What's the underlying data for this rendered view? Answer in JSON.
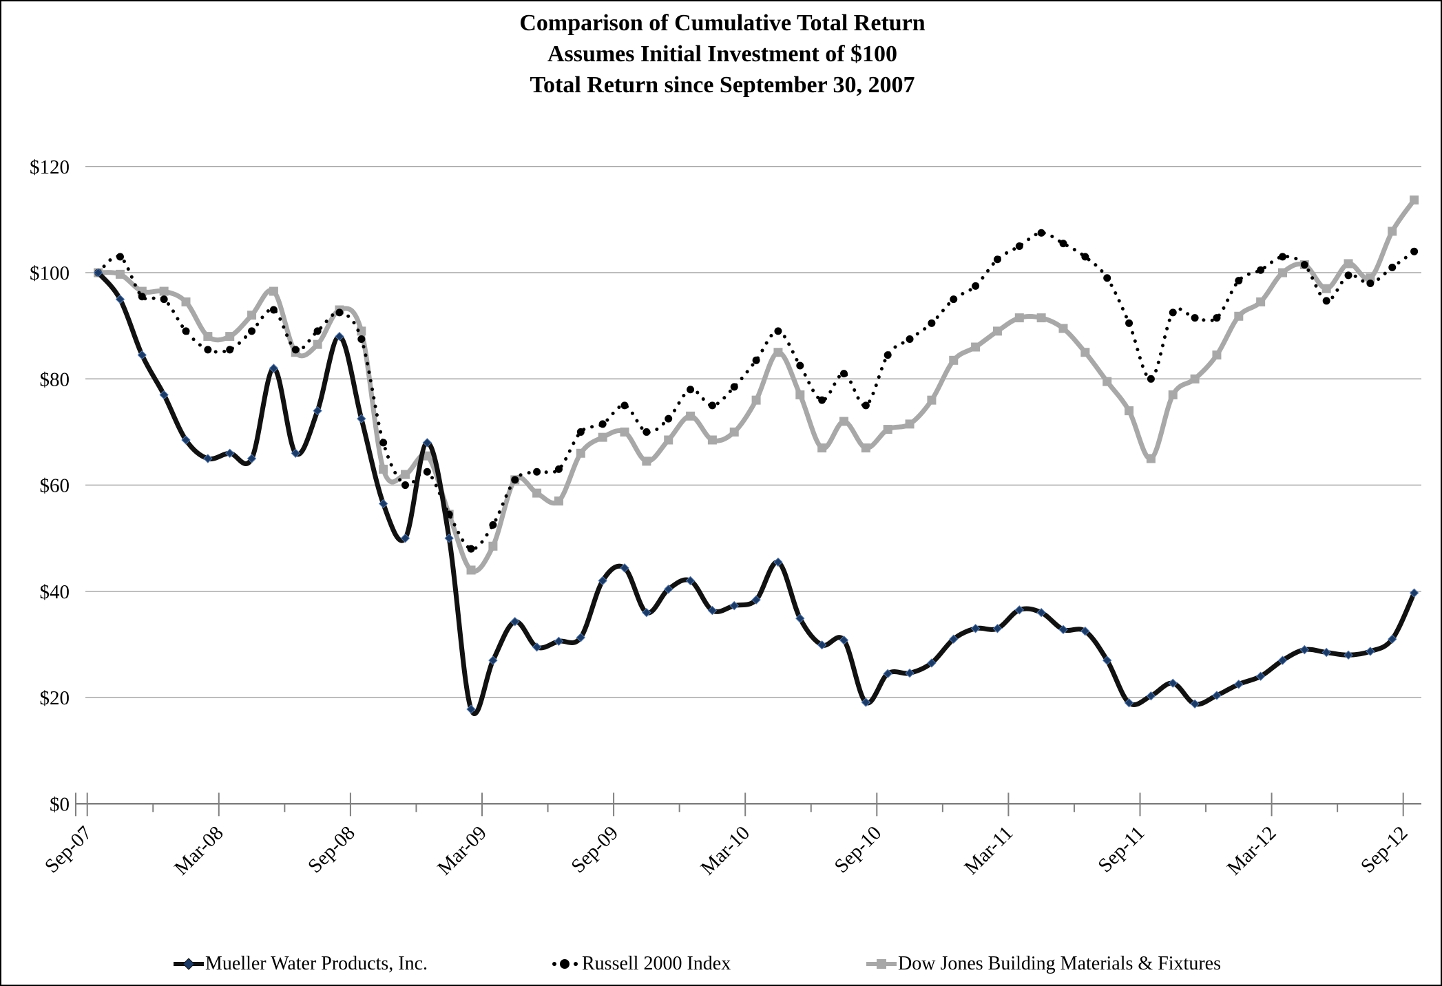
{
  "chart_data": {
    "type": "line",
    "title_lines": [
      "Comparison of Cumulative Total Return",
      "Assumes Initial Investment of $100",
      "Total Return since September 30, 2007"
    ],
    "ylim": [
      0,
      120
    ],
    "y_tick_labels": [
      "$0",
      "$20",
      "$40",
      "$60",
      "$80",
      "$100",
      "$120"
    ],
    "x_tick_labels": [
      "Sep-07",
      "Mar-08",
      "Sep-08",
      "Mar-09",
      "Sep-09",
      "Mar-10",
      "Sep-10",
      "Mar-11",
      "Sep-11",
      "Mar-12",
      "Sep-12"
    ],
    "months_per_point": 1,
    "points_per_tick": 6,
    "grid": "horizontal",
    "legend_position": "bottom",
    "colors": {
      "grid": "#a6a6a6",
      "axis": "#808080",
      "mueller_line": "#111111",
      "mueller_marker": "#1b3a66",
      "russell": "#000000",
      "dowjones": "#a8a8a8"
    },
    "series": [
      {
        "name": "Mueller Water Products, Inc.",
        "style": "solid",
        "marker": "diamond",
        "values": [
          100,
          95,
          84.5,
          77,
          68.5,
          65,
          66,
          65,
          82,
          66,
          74,
          88,
          72.5,
          56.5,
          50,
          68,
          50,
          17.8,
          27,
          34.3,
          29.5,
          30.6,
          31.3,
          42,
          44.4,
          36,
          40.4,
          42,
          36.4,
          37.3,
          38.4,
          45.5,
          34.9,
          29.9,
          30.8,
          19.1,
          24.5,
          24.6,
          26.5,
          31,
          33,
          33,
          36.5,
          36,
          32.8,
          32.5,
          27,
          19,
          20.3,
          22.7,
          18.8,
          20.4,
          22.5,
          24,
          27,
          29,
          28.5,
          28,
          28.7,
          31,
          39.7
        ]
      },
      {
        "name": "Russell 2000 Index",
        "style": "dotted",
        "marker": "circle",
        "values": [
          100,
          103,
          95.5,
          95,
          89,
          85.5,
          85.5,
          89,
          93,
          85.5,
          89,
          92.5,
          87.5,
          68,
          60,
          62.5,
          54.5,
          48,
          52.5,
          61,
          62.5,
          63,
          70,
          71.5,
          75,
          70,
          72.5,
          78,
          75,
          78.5,
          83.5,
          89,
          82.5,
          76,
          81,
          75,
          84.5,
          87.5,
          90.5,
          95,
          97.5,
          102.5,
          105,
          107.5,
          105.5,
          103,
          99,
          90.5,
          80,
          92.5,
          91.5,
          91.5,
          98.5,
          100.5,
          103,
          101.5,
          94.7,
          99.5,
          98,
          101,
          104
        ]
      },
      {
        "name": "Dow Jones Building Materials & Fixtures",
        "style": "solid",
        "marker": "square",
        "values": [
          100,
          99.7,
          96.5,
          96.5,
          94.5,
          88,
          88,
          92,
          96.5,
          85,
          86.5,
          93,
          89,
          63,
          62,
          65.5,
          54.5,
          44,
          48.5,
          61,
          58.5,
          57,
          66,
          69,
          70,
          64.5,
          68.5,
          73,
          68.5,
          70,
          76,
          85,
          77,
          67,
          72,
          67,
          70.5,
          71.5,
          76,
          83.5,
          86,
          89,
          91.5,
          91.5,
          89.5,
          85,
          79.5,
          74,
          65,
          77,
          80,
          84.5,
          91.8,
          94.5,
          100,
          101.5,
          97,
          101.7,
          99,
          107.8,
          113.7
        ]
      }
    ]
  }
}
